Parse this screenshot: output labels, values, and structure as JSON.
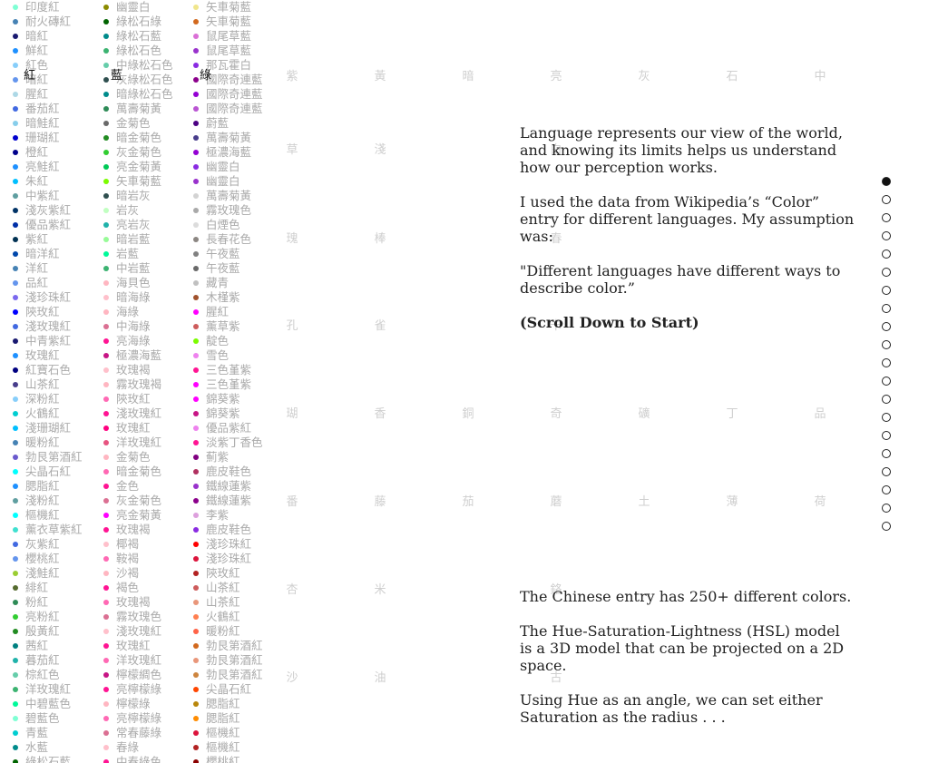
{
  "headers": [
    "紅",
    "藍",
    "綠"
  ],
  "col1": [
    {
      "n": "印度紅",
      "c": "#7fffd4"
    },
    {
      "n": "耐火磚紅",
      "c": "#4682b4"
    },
    {
      "n": "暗紅",
      "c": "#191970"
    },
    {
      "n": "鮮紅",
      "c": "#1e90ff"
    },
    {
      "n": "紅色",
      "c": "#87cefa"
    },
    {
      "n": "暗紅",
      "c": "#6495ed"
    },
    {
      "n": "腥紅",
      "c": "#add8e6"
    },
    {
      "n": "番茄紅",
      "c": "#4169e1"
    },
    {
      "n": "暗鮭紅",
      "c": "#87ceeb"
    },
    {
      "n": "珊瑚紅",
      "c": "#0000cd"
    },
    {
      "n": "橙紅",
      "c": "#00008b"
    },
    {
      "n": "亮鮭紅",
      "c": "#1e90ff"
    },
    {
      "n": "朱紅",
      "c": "#00bfff"
    },
    {
      "n": "中紫紅",
      "c": "#5f9ea0"
    },
    {
      "n": "淺灰紫紅",
      "c": "#003366"
    },
    {
      "n": "優品紫紅",
      "c": "#002fa7"
    },
    {
      "n": "紫紅",
      "c": "#003153"
    },
    {
      "n": "暗洋紅",
      "c": "#0047ab"
    },
    {
      "n": "洋紅",
      "c": "#4682b4"
    },
    {
      "n": "品紅",
      "c": "#6495ed"
    },
    {
      "n": "淺珍珠紅",
      "c": "#7b68ee"
    },
    {
      "n": "陝玫紅",
      "c": "#0000ff"
    },
    {
      "n": "淺玫瑰紅",
      "c": "#4169e1"
    },
    {
      "n": "中青紫紅",
      "c": "#191970"
    },
    {
      "n": "玫瑰紅",
      "c": "#1e90ff"
    },
    {
      "n": "紅寶石色",
      "c": "#000080"
    },
    {
      "n": "山茶紅",
      "c": "#483d8b"
    },
    {
      "n": "深粉紅",
      "c": "#87cefa"
    },
    {
      "n": "火鶴紅",
      "c": "#00ced1"
    },
    {
      "n": "淺珊瑚紅",
      "c": "#00bfff"
    },
    {
      "n": "暖粉紅",
      "c": "#4682b4"
    },
    {
      "n": "勃艮第酒紅",
      "c": "#6a5acd"
    },
    {
      "n": "尖晶石紅",
      "c": "#00ffff"
    },
    {
      "n": "腮脂紅",
      "c": "#1e90ff"
    },
    {
      "n": "淺粉紅",
      "c": "#5f9ea0"
    },
    {
      "n": "樞機紅",
      "c": "#00ffff"
    },
    {
      "n": "薰衣草紫紅",
      "c": "#40e0d0"
    },
    {
      "n": "灰紫紅",
      "c": "#4169e1"
    },
    {
      "n": "櫻桃紅",
      "c": "#6495ed"
    },
    {
      "n": "淺鮭紅",
      "c": "#9acd32"
    },
    {
      "n": "緋紅",
      "c": "#556b2f"
    },
    {
      "n": "粉紅",
      "c": "#2e8b57"
    },
    {
      "n": "亮粉紅",
      "c": "#32cd32"
    },
    {
      "n": "殷黃紅",
      "c": "#228b22"
    },
    {
      "n": "茜紅",
      "c": "#008080"
    },
    {
      "n": "暮茄紅",
      "c": "#20b2aa"
    },
    {
      "n": "棕紅色",
      "c": "#66cdaa"
    },
    {
      "n": "洋玫瑰紅",
      "c": "#3cb371"
    },
    {
      "n": "中碧藍色",
      "c": "#00fa9a"
    },
    {
      "n": "碧藍色",
      "c": "#7fffd4"
    },
    {
      "n": "青藍",
      "c": "#00ced1"
    },
    {
      "n": "水藍",
      "c": "#008b8b"
    },
    {
      "n": "綠松石藍",
      "c": "#006400"
    }
  ],
  "col2": [
    {
      "n": "幽靈白",
      "c": "#8b8b00"
    },
    {
      "n": "綠松石綠",
      "c": "#006400"
    },
    {
      "n": "綠松石藍",
      "c": "#008b8b"
    },
    {
      "n": "綠松石色",
      "c": "#3cb371"
    },
    {
      "n": "中綠松石色",
      "c": "#66cdaa"
    },
    {
      "n": "灰綠松石色",
      "c": "#2f4f4f"
    },
    {
      "n": "暗綠松石色",
      "c": "#008b8b"
    },
    {
      "n": "萬壽菊黃",
      "c": "#2e8b57"
    },
    {
      "n": "金菊色",
      "c": "#696969"
    },
    {
      "n": "暗金菊色",
      "c": "#228b22"
    },
    {
      "n": "灰金菊色",
      "c": "#32cd32"
    },
    {
      "n": "亮金菊黃",
      "c": "#00c957"
    },
    {
      "n": "矢車菊藍",
      "c": "#7cfc00"
    },
    {
      "n": "暗岩灰",
      "c": "#2f4f4f"
    },
    {
      "n": "岩灰",
      "c": "#c1ffc1"
    },
    {
      "n": "亮岩灰",
      "c": "#20b2aa"
    },
    {
      "n": "暗岩藍",
      "c": "#98fb98"
    },
    {
      "n": "岩藍",
      "c": "#00fa9a"
    },
    {
      "n": "中岩藍",
      "c": "#3cb371"
    },
    {
      "n": "海貝色",
      "c": "#ffb6c1"
    },
    {
      "n": "暗海綠",
      "c": "#ffc0cb"
    },
    {
      "n": "海綠",
      "c": "#ffb6c1"
    },
    {
      "n": "中海綠",
      "c": "#db7093"
    },
    {
      "n": "亮海綠",
      "c": "#ff1493"
    },
    {
      "n": "極濃海藍",
      "c": "#c71585"
    },
    {
      "n": "玫瑰褐",
      "c": "#ffc0cb"
    },
    {
      "n": "霧玫瑰褐",
      "c": "#ffb6c1"
    },
    {
      "n": "陝玫紅",
      "c": "#ff69b4"
    },
    {
      "n": "淺玫瑰紅",
      "c": "#ff1493"
    },
    {
      "n": "玫瑰紅",
      "c": "#ff007f"
    },
    {
      "n": "洋玫瑰紅",
      "c": "#e75480"
    },
    {
      "n": "金菊色",
      "c": "#ffb6c1"
    },
    {
      "n": "暗金菊色",
      "c": "#ff69b4"
    },
    {
      "n": "金色",
      "c": "#ff1493"
    },
    {
      "n": "灰金菊色",
      "c": "#db7093"
    },
    {
      "n": "亮金菊黃",
      "c": "#ff00ff"
    },
    {
      "n": "玫瑰褐",
      "c": "#ff1493"
    },
    {
      "n": "椰褐",
      "c": "#ffc0cb"
    },
    {
      "n": "鞍褐",
      "c": "#ff69b4"
    },
    {
      "n": "沙褐",
      "c": "#ffb6c1"
    },
    {
      "n": "褐色",
      "c": "#ff1493"
    },
    {
      "n": "玫瑰褐",
      "c": "#ff69b4"
    },
    {
      "n": "霧玫瑰色",
      "c": "#db7093"
    },
    {
      "n": "淺玫瑰紅",
      "c": "#ffc0cb"
    },
    {
      "n": "玫瑰紅",
      "c": "#ff1493"
    },
    {
      "n": "洋玫瑰紅",
      "c": "#ff69b4"
    },
    {
      "n": "檸檬綢色",
      "c": "#c71585"
    },
    {
      "n": "亮檸檬綠",
      "c": "#ff1493"
    },
    {
      "n": "檸檬綠",
      "c": "#ffb6c1"
    },
    {
      "n": "亮檸檬綠",
      "c": "#ff69b4"
    },
    {
      "n": "常春藤綠",
      "c": "#db7093"
    },
    {
      "n": "春綠",
      "c": "#ffc0cb"
    },
    {
      "n": "中春綠色",
      "c": "#ff1493"
    }
  ],
  "col3": [
    {
      "n": "矢車菊藍",
      "c": "#f0e68c"
    },
    {
      "n": "矢車菊藍",
      "c": "#d2691e"
    },
    {
      "n": "鼠尾草藍",
      "c": "#da70d6"
    },
    {
      "n": "鼠尾草藍",
      "c": "#9932cc"
    },
    {
      "n": "那瓦霍白",
      "c": "#8a2be2"
    },
    {
      "n": "國際奇連藍",
      "c": "#8b008b"
    },
    {
      "n": "國際奇連藍",
      "c": "#9400d3"
    },
    {
      "n": "國際奇連藍",
      "c": "#ba55d3"
    },
    {
      "n": "蔚藍",
      "c": "#4b0082"
    },
    {
      "n": "萬壽菊黃",
      "c": "#483d8b"
    },
    {
      "n": "極濃海藍",
      "c": "#9400d3"
    },
    {
      "n": "幽靈白",
      "c": "#8a2be2"
    },
    {
      "n": "幽靈白",
      "c": "#9932cc"
    },
    {
      "n": "萬壽菊黃",
      "c": "#d3d3d3"
    },
    {
      "n": "霧玫瑰色",
      "c": "#a9a9a9"
    },
    {
      "n": "白煙色",
      "c": "#dcdcdc"
    },
    {
      "n": "長春花色",
      "c": "#8b8682"
    },
    {
      "n": "午夜藍",
      "c": "#808080"
    },
    {
      "n": "午夜藍",
      "c": "#696969"
    },
    {
      "n": "藏青",
      "c": "#c0c0c0"
    },
    {
      "n": "木槿紫",
      "c": "#a0522d"
    },
    {
      "n": "腥紅",
      "c": "#ff00ff"
    },
    {
      "n": "薰草紫",
      "c": "#cd5c5c"
    },
    {
      "n": "靛色",
      "c": "#7cfc00"
    },
    {
      "n": "雪色",
      "c": "#ee82ee"
    },
    {
      "n": "三色堇紫",
      "c": "#ff1493"
    },
    {
      "n": "三色堇紫",
      "c": "#ff00ff"
    },
    {
      "n": "錦葵紫",
      "c": "#ff00ff"
    },
    {
      "n": "錦葵紫",
      "c": "#c71585"
    },
    {
      "n": "優品紫紅",
      "c": "#ee82ee"
    },
    {
      "n": "淡紫丁香色",
      "c": "#ff1493"
    },
    {
      "n": "薊紫",
      "c": "#800080"
    },
    {
      "n": "鹿皮鞋色",
      "c": "#b03060"
    },
    {
      "n": "鐵線蓮紫",
      "c": "#9932cc"
    },
    {
      "n": "鐵線蓮紫",
      "c": "#8b008b"
    },
    {
      "n": "李紫",
      "c": "#dda0dd"
    },
    {
      "n": "鹿皮鞋色",
      "c": "#8a2be2"
    },
    {
      "n": "淺珍珠紅",
      "c": "#ff0000"
    },
    {
      "n": "淺珍珠紅",
      "c": "#dc143c"
    },
    {
      "n": "陝玫紅",
      "c": "#b22222"
    },
    {
      "n": "山茶紅",
      "c": "#cd5c5c"
    },
    {
      "n": "山茶紅",
      "c": "#e9967a"
    },
    {
      "n": "火鶴紅",
      "c": "#ff7f50"
    },
    {
      "n": "暖粉紅",
      "c": "#ff6347"
    },
    {
      "n": "勃艮第酒紅",
      "c": "#d2691e"
    },
    {
      "n": "勃艮第酒紅",
      "c": "#e9967a"
    },
    {
      "n": "勃艮第酒紅",
      "c": "#cd853f"
    },
    {
      "n": "尖晶石紅",
      "c": "#ff4500"
    },
    {
      "n": "腮脂紅",
      "c": "#b8860b"
    },
    {
      "n": "腮脂紅",
      "c": "#ff8c00"
    },
    {
      "n": "樞機紅",
      "c": "#dc143c"
    },
    {
      "n": "樞機紅",
      "c": "#b22222"
    },
    {
      "n": "櫻桃紅",
      "c": "#8b0000"
    }
  ],
  "grid_rows": [
    [
      "紫",
      "黃",
      "暗",
      "亮",
      "灰",
      "石",
      "中"
    ],
    [
      "草",
      "淺",
      "",
      "白",
      "",
      "",
      ""
    ],
    [
      "瑰",
      "棒",
      "",
      "春",
      "",
      "",
      ""
    ],
    [
      "孔",
      "雀",
      "",
      "卡",
      "",
      "",
      ""
    ],
    [
      "瑚",
      "香",
      "",
      "銅",
      "奇",
      "礦",
      "丁",
      "品"
    ],
    [
      "番",
      "藤",
      "",
      "茄",
      "蘑",
      "土",
      "薄",
      "荷"
    ],
    [
      "杏",
      "米",
      "",
      "鉻",
      "",
      "",
      "",
      ""
    ],
    [
      "沙",
      "油",
      "",
      "古",
      "",
      "",
      "",
      ""
    ]
  ],
  "grid_flat": [
    {
      "t": "紫",
      "r": 0,
      "k": 0
    },
    {
      "t": "黃",
      "r": 0,
      "k": 1
    },
    {
      "t": "暗",
      "r": 0,
      "k": 2
    },
    {
      "t": "亮",
      "r": 0,
      "k": 3
    },
    {
      "t": "灰",
      "r": 0,
      "k": 4
    },
    {
      "t": "石",
      "r": 0,
      "k": 5
    },
    {
      "t": "中",
      "r": 0,
      "k": 6
    },
    {
      "t": "草",
      "r": 1,
      "k": 0
    },
    {
      "t": "淺",
      "r": 1,
      "k": 1
    },
    {
      "t": "白",
      "r": 1,
      "k": 2
    },
    {
      "t": "瑰",
      "r": 2,
      "k": 0
    },
    {
      "t": "棒",
      "r": 2,
      "k": 1
    },
    {
      "t": "春",
      "r": 2,
      "k": 2
    },
    {
      "t": "孔",
      "r": 3,
      "k": 0
    },
    {
      "t": "雀",
      "r": 3,
      "k": 1
    },
    {
      "t": "卡",
      "r": 3,
      "k": 2
    },
    {
      "t": "瑚",
      "r": 4,
      "k": 0
    },
    {
      "t": "香",
      "r": 4,
      "k": 1
    },
    {
      "t": "銅",
      "r": 4,
      "k": 2
    },
    {
      "t": "奇",
      "r": 4,
      "k": 3
    },
    {
      "t": "礦",
      "r": 4,
      "k": 4
    },
    {
      "t": "丁",
      "r": 4,
      "k": 5
    },
    {
      "t": "品",
      "r": 4,
      "k": 6
    },
    {
      "t": "番",
      "r": 5,
      "k": 0
    },
    {
      "t": "藤",
      "r": 5,
      "k": 1
    },
    {
      "t": "茄",
      "r": 5,
      "k": 2
    },
    {
      "t": "蘑",
      "r": 5,
      "k": 3
    },
    {
      "t": "土",
      "r": 5,
      "k": 4
    },
    {
      "t": "薄",
      "r": 5,
      "k": 5
    },
    {
      "t": "荷",
      "r": 5,
      "k": 6
    },
    {
      "t": "杏",
      "r": 6,
      "k": 0
    },
    {
      "t": "米",
      "r": 6,
      "k": 1
    },
    {
      "t": "鉻",
      "r": 6,
      "k": 2
    },
    {
      "t": "沙",
      "r": 7,
      "k": 0
    },
    {
      "t": "油",
      "r": 7,
      "k": 1
    },
    {
      "t": "古",
      "r": 7,
      "k": 2
    }
  ],
  "intro": {
    "p1": "Language represents our view of the world, and knowing its limits helps us understand how our perception works.",
    "p2": "I used the data from Wikipedia’s “Color” entry for different languages. My assumption was:",
    "p3": "\"Different languages have different ways to describe color.”",
    "p4": "(Scroll Down to Start)"
  },
  "section2": {
    "p1": "The Chinese entry has 250+ different colors.",
    "p2": "The Hue-Saturation-Lightness (HSL) model is a 3D model that can be projected on a 2D space.",
    "p3": "Using Hue as an angle, we can set either Saturation as the radius . . ."
  },
  "nav": {
    "count": 20,
    "active": 0
  }
}
